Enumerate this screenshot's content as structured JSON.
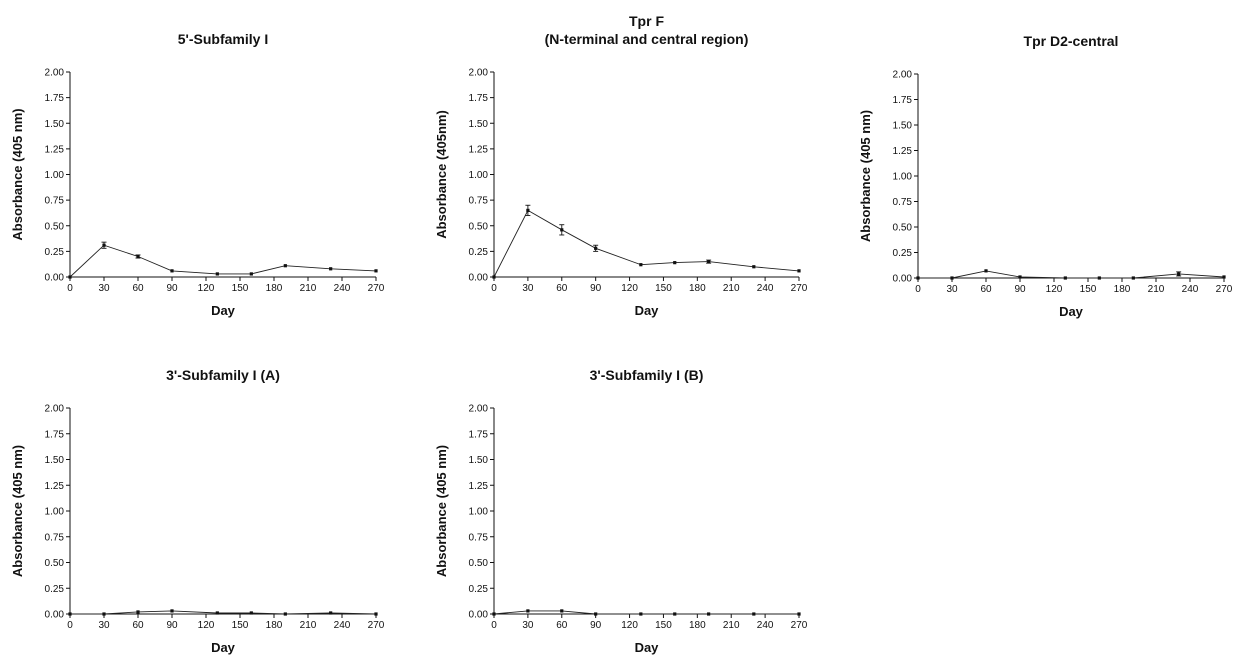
{
  "chart_data": [
    {
      "type": "line",
      "title": "5'-Subfamily I",
      "title_line2": "",
      "xlabel": "Day",
      "ylabel": "Absorbance (405 nm)",
      "xlim": [
        0,
        270
      ],
      "ylim": [
        0,
        2.0
      ],
      "xticks": [
        "0",
        "30",
        "60",
        "90",
        "120",
        "150",
        "180",
        "210",
        "240",
        "270"
      ],
      "yticks": [
        "0.00",
        "0.25",
        "0.50",
        "0.75",
        "1.00",
        "1.25",
        "1.50",
        "1.75",
        "2.00"
      ],
      "x": [
        0,
        30,
        60,
        90,
        130,
        160,
        190,
        230,
        270
      ],
      "y": [
        0.0,
        0.31,
        0.2,
        0.06,
        0.03,
        0.03,
        0.11,
        0.08,
        0.06
      ],
      "err": [
        0,
        0.03,
        0.015,
        0.01,
        0.005,
        0.005,
        0.01,
        0.01,
        0.01
      ]
    },
    {
      "type": "line",
      "title": "Tpr F",
      "title_line2": "(N-terminal and central region)",
      "xlabel": "Day",
      "ylabel": "Absorbance (405nm)",
      "xlim": [
        0,
        270
      ],
      "ylim": [
        0,
        2.0
      ],
      "xticks": [
        "0",
        "30",
        "60",
        "90",
        "120",
        "150",
        "180",
        "210",
        "240",
        "270"
      ],
      "yticks": [
        "0.00",
        "0.25",
        "0.50",
        "0.75",
        "1.00",
        "1.25",
        "1.50",
        "1.75",
        "2.00"
      ],
      "x": [
        0,
        30,
        60,
        90,
        130,
        160,
        190,
        230,
        270
      ],
      "y": [
        0.0,
        0.65,
        0.46,
        0.28,
        0.12,
        0.14,
        0.15,
        0.1,
        0.06
      ],
      "err": [
        0,
        0.05,
        0.05,
        0.03,
        0.01,
        0.01,
        0.015,
        0.01,
        0.01
      ]
    },
    {
      "type": "line",
      "title": "Tpr D2-central",
      "title_line2": "",
      "xlabel": "Day",
      "ylabel": "Absorbance (405 nm)",
      "xlim": [
        0,
        270
      ],
      "ylim": [
        0,
        2.0
      ],
      "xticks": [
        "0",
        "30",
        "60",
        "90",
        "120",
        "150",
        "180",
        "210",
        "240",
        "270"
      ],
      "yticks": [
        "0.00",
        "0.25",
        "0.50",
        "0.75",
        "1.00",
        "1.25",
        "1.50",
        "1.75",
        "2.00"
      ],
      "x": [
        0,
        30,
        60,
        90,
        130,
        160,
        190,
        230,
        270
      ],
      "y": [
        0.0,
        0.0,
        0.07,
        0.01,
        0.0,
        0.0,
        0.0,
        0.04,
        0.01
      ],
      "err": [
        0,
        0.005,
        0.01,
        0.005,
        0.005,
        0.005,
        0.005,
        0.02,
        0.005
      ]
    },
    {
      "type": "line",
      "title": "3'-Subfamily I (A)",
      "title_line2": "",
      "xlabel": "Day",
      "ylabel": "Absorbance (405 nm)",
      "xlim": [
        0,
        270
      ],
      "ylim": [
        0,
        2.0
      ],
      "xticks": [
        "0",
        "30",
        "60",
        "90",
        "120",
        "150",
        "180",
        "210",
        "240",
        "270"
      ],
      "yticks": [
        "0.00",
        "0.25",
        "0.50",
        "0.75",
        "1.00",
        "1.25",
        "1.50",
        "1.75",
        "2.00"
      ],
      "x": [
        0,
        30,
        60,
        90,
        130,
        160,
        190,
        230,
        270
      ],
      "y": [
        0.0,
        0.0,
        0.02,
        0.03,
        0.01,
        0.01,
        0.0,
        0.01,
        0.0
      ],
      "err": [
        0,
        0.005,
        0.005,
        0.005,
        0.005,
        0.005,
        0.005,
        0.005,
        0.005
      ]
    },
    {
      "type": "line",
      "title": "3'-Subfamily I (B)",
      "title_line2": "",
      "xlabel": "Day",
      "ylabel": "Absorbance (405 nm)",
      "xlim": [
        0,
        270
      ],
      "ylim": [
        0,
        2.0
      ],
      "xticks": [
        "0",
        "30",
        "60",
        "90",
        "120",
        "150",
        "180",
        "210",
        "240",
        "270"
      ],
      "yticks": [
        "0.00",
        "0.25",
        "0.50",
        "0.75",
        "1.00",
        "1.25",
        "1.50",
        "1.75",
        "2.00"
      ],
      "x": [
        0,
        30,
        60,
        90,
        130,
        160,
        190,
        230,
        270
      ],
      "y": [
        0.0,
        0.03,
        0.03,
        0.0,
        0.0,
        0.0,
        0.0,
        0.0,
        0.0
      ],
      "err": [
        0,
        0.005,
        0.005,
        0.005,
        0.005,
        0.005,
        0.005,
        0.005,
        0.005
      ]
    }
  ]
}
